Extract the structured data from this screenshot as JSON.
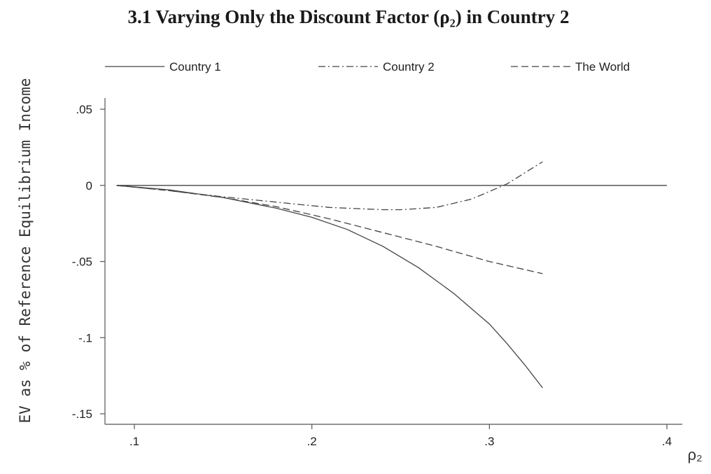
{
  "chart_data": {
    "type": "line",
    "title": "3.1 Varying Only the Discount Factor (ρ₂) in Country 2",
    "xlabel": "ρ₂",
    "ylabel": "EV as % of Reference Equilibrium Income",
    "xlim": [
      0.09,
      0.405
    ],
    "ylim": [
      -0.155,
      0.055
    ],
    "x_ticks": [
      {
        "value": 0.1,
        "label": ".1"
      },
      {
        "value": 0.2,
        "label": ".2"
      },
      {
        "value": 0.3,
        "label": ".3"
      },
      {
        "value": 0.4,
        "label": ".4"
      }
    ],
    "y_ticks": [
      {
        "value": 0.05,
        "label": ".05"
      },
      {
        "value": 0,
        "label": "0"
      },
      {
        "value": -0.05,
        "label": "-.05"
      },
      {
        "value": -0.1,
        "label": "-.1"
      },
      {
        "value": -0.15,
        "label": "-.15"
      }
    ],
    "legend_position": "top",
    "series": [
      {
        "name": "Country 1",
        "dash": "solid",
        "x": [
          0.09,
          0.4
        ],
        "y": [
          0.0,
          0.0
        ]
      },
      {
        "name": "Country 2",
        "dash": "dashdot",
        "x": [
          0.09,
          0.12,
          0.15,
          0.18,
          0.21,
          0.24,
          0.25,
          0.27,
          0.29,
          0.31,
          0.33
        ],
        "y": [
          0.0,
          -0.0035,
          -0.0075,
          -0.011,
          -0.0145,
          -0.016,
          -0.016,
          -0.0145,
          -0.009,
          0.001,
          0.0155
        ]
      },
      {
        "name": "The World",
        "dash": "dashed",
        "x": [
          0.09,
          0.12,
          0.15,
          0.18,
          0.21,
          0.24,
          0.27,
          0.3,
          0.33
        ],
        "y": [
          0.0,
          -0.0035,
          -0.008,
          -0.014,
          -0.022,
          -0.031,
          -0.04,
          -0.05,
          -0.058
        ]
      },
      {
        "name": "",
        "dash": "solid",
        "x": [
          0.09,
          0.12,
          0.15,
          0.18,
          0.2,
          0.22,
          0.24,
          0.26,
          0.28,
          0.3,
          0.31,
          0.32,
          0.33
        ],
        "y": [
          0.0,
          -0.003,
          -0.008,
          -0.015,
          -0.021,
          -0.029,
          -0.04,
          -0.054,
          -0.071,
          -0.091,
          -0.104,
          -0.118,
          -0.133
        ]
      }
    ]
  }
}
